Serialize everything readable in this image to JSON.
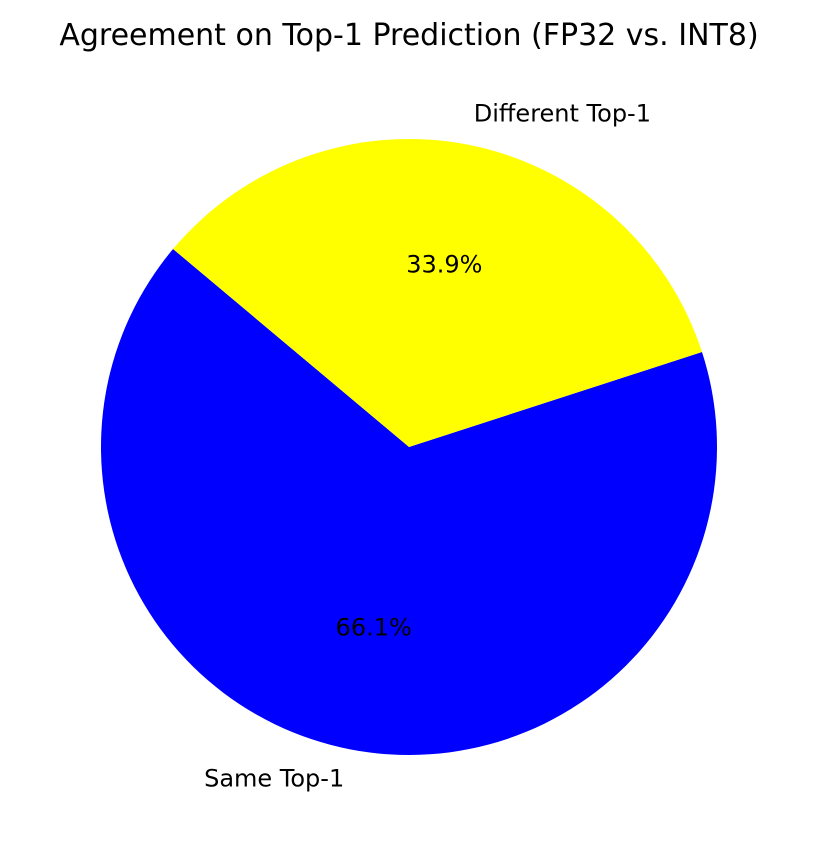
{
  "chart_data": {
    "type": "pie",
    "title": "Agreement on Top-1 Prediction (FP32 vs. INT8)",
    "slices": [
      {
        "label": "Same Top-1",
        "value": 66.1,
        "pct_label": "66.1%",
        "color": "#0000ff"
      },
      {
        "label": "Different Top-1",
        "value": 33.9,
        "pct_label": "33.9%",
        "color": "#ffff00"
      }
    ],
    "start_angle_deg": 140,
    "direction": "counterclockwise",
    "legend": "none"
  }
}
